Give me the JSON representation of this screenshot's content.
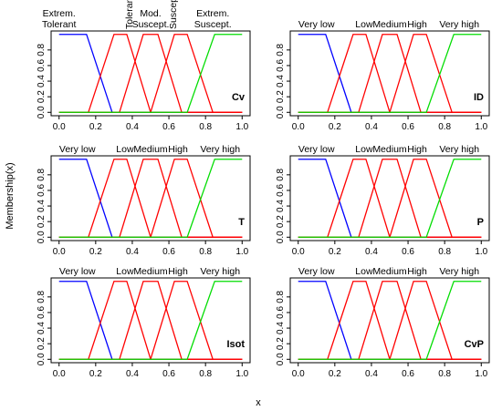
{
  "figure": {
    "ylabel": "Membership(x)",
    "xlabel": "x"
  },
  "chart_data": [
    {
      "type": "line",
      "panel_label": "Cv",
      "xlim": [
        0,
        1
      ],
      "ylim": [
        0,
        1
      ],
      "xticks": [
        "0.0",
        "0.2",
        "0.4",
        "0.6",
        "0.8",
        "1.0"
      ],
      "yticks": [
        "0.0",
        "0.2",
        "0.4",
        "0.6",
        "0.8"
      ],
      "category_labels": [
        {
          "text": "Extrem.\nTolerant",
          "x": 0.0,
          "rotated": false
        },
        {
          "text": "Tolerant",
          "x": 0.38,
          "rotated": true
        },
        {
          "text": "Mod.\nSuscept.",
          "x": 0.5,
          "rotated": false
        },
        {
          "text": "Suscept.",
          "x": 0.62,
          "rotated": true
        },
        {
          "text": "Extrem.\nSuscept.",
          "x": 0.84,
          "rotated": false
        }
      ],
      "series": [
        {
          "color": "#0000ff",
          "x": [
            0,
            0.15,
            0.29,
            1
          ],
          "y": [
            1,
            1,
            0,
            0
          ]
        },
        {
          "color": "#ff0000",
          "x": [
            0,
            0.16,
            0.3,
            0.37,
            0.5,
            1
          ],
          "y": [
            0,
            0,
            1,
            1,
            0,
            0
          ]
        },
        {
          "color": "#ff0000",
          "x": [
            0,
            0.33,
            0.46,
            0.54,
            0.67,
            1
          ],
          "y": [
            0,
            0,
            1,
            1,
            0,
            0
          ]
        },
        {
          "color": "#ff0000",
          "x": [
            0,
            0.5,
            0.63,
            0.7,
            0.84,
            1
          ],
          "y": [
            0,
            0,
            1,
            1,
            0,
            0
          ]
        },
        {
          "color": "#00dd00",
          "x": [
            0,
            0.7,
            0.85,
            1
          ],
          "y": [
            0,
            0,
            1,
            1
          ]
        }
      ]
    },
    {
      "type": "line",
      "panel_label": "ID",
      "xlim": [
        0,
        1
      ],
      "ylim": [
        0,
        1
      ],
      "xticks": [
        "0.0",
        "0.2",
        "0.4",
        "0.6",
        "0.8",
        "1.0"
      ],
      "yticks": [
        "0.0",
        "0.2",
        "0.4",
        "0.6",
        "0.8"
      ],
      "category_labels": [
        {
          "text": "Very low",
          "x": 0.1,
          "rotated": false
        },
        {
          "text": "Low",
          "x": 0.36,
          "rotated": false
        },
        {
          "text": "Medium",
          "x": 0.5,
          "rotated": false
        },
        {
          "text": "High",
          "x": 0.65,
          "rotated": false
        },
        {
          "text": "Very high",
          "x": 0.88,
          "rotated": false
        }
      ],
      "series": [
        {
          "color": "#0000ff",
          "x": [
            0,
            0.15,
            0.29,
            1
          ],
          "y": [
            1,
            1,
            0,
            0
          ]
        },
        {
          "color": "#ff0000",
          "x": [
            0,
            0.16,
            0.3,
            0.37,
            0.5,
            1
          ],
          "y": [
            0,
            0,
            1,
            1,
            0,
            0
          ]
        },
        {
          "color": "#ff0000",
          "x": [
            0,
            0.33,
            0.46,
            0.54,
            0.67,
            1
          ],
          "y": [
            0,
            0,
            1,
            1,
            0,
            0
          ]
        },
        {
          "color": "#ff0000",
          "x": [
            0,
            0.5,
            0.63,
            0.7,
            0.84,
            1
          ],
          "y": [
            0,
            0,
            1,
            1,
            0,
            0
          ]
        },
        {
          "color": "#00dd00",
          "x": [
            0,
            0.7,
            0.85,
            1
          ],
          "y": [
            0,
            0,
            1,
            1
          ]
        }
      ]
    },
    {
      "type": "line",
      "panel_label": "T",
      "xlim": [
        0,
        1
      ],
      "ylim": [
        0,
        1
      ],
      "xticks": [
        "0.0",
        "0.2",
        "0.4",
        "0.6",
        "0.8",
        "1.0"
      ],
      "yticks": [
        "0.0",
        "0.2",
        "0.4",
        "0.6",
        "0.8"
      ],
      "category_labels": [
        {
          "text": "Very low",
          "x": 0.1,
          "rotated": false
        },
        {
          "text": "Low",
          "x": 0.36,
          "rotated": false
        },
        {
          "text": "Medium",
          "x": 0.5,
          "rotated": false
        },
        {
          "text": "High",
          "x": 0.65,
          "rotated": false
        },
        {
          "text": "Very high",
          "x": 0.88,
          "rotated": false
        }
      ],
      "series": [
        {
          "color": "#0000ff",
          "x": [
            0,
            0.15,
            0.29,
            1
          ],
          "y": [
            1,
            1,
            0,
            0
          ]
        },
        {
          "color": "#ff0000",
          "x": [
            0,
            0.16,
            0.3,
            0.37,
            0.5,
            1
          ],
          "y": [
            0,
            0,
            1,
            1,
            0,
            0
          ]
        },
        {
          "color": "#ff0000",
          "x": [
            0,
            0.33,
            0.46,
            0.54,
            0.67,
            1
          ],
          "y": [
            0,
            0,
            1,
            1,
            0,
            0
          ]
        },
        {
          "color": "#ff0000",
          "x": [
            0,
            0.5,
            0.63,
            0.7,
            0.84,
            1
          ],
          "y": [
            0,
            0,
            1,
            1,
            0,
            0
          ]
        },
        {
          "color": "#00dd00",
          "x": [
            0,
            0.7,
            0.85,
            1
          ],
          "y": [
            0,
            0,
            1,
            1
          ]
        }
      ]
    },
    {
      "type": "line",
      "panel_label": "P",
      "xlim": [
        0,
        1
      ],
      "ylim": [
        0,
        1
      ],
      "xticks": [
        "0.0",
        "0.2",
        "0.4",
        "0.6",
        "0.8",
        "1.0"
      ],
      "yticks": [
        "0.0",
        "0.2",
        "0.4",
        "0.6",
        "0.8"
      ],
      "category_labels": [
        {
          "text": "Very low",
          "x": 0.1,
          "rotated": false
        },
        {
          "text": "Low",
          "x": 0.36,
          "rotated": false
        },
        {
          "text": "Medium",
          "x": 0.5,
          "rotated": false
        },
        {
          "text": "High",
          "x": 0.65,
          "rotated": false
        },
        {
          "text": "Very high",
          "x": 0.88,
          "rotated": false
        }
      ],
      "series": [
        {
          "color": "#0000ff",
          "x": [
            0,
            0.15,
            0.29,
            1
          ],
          "y": [
            1,
            1,
            0,
            0
          ]
        },
        {
          "color": "#ff0000",
          "x": [
            0,
            0.16,
            0.3,
            0.37,
            0.5,
            1
          ],
          "y": [
            0,
            0,
            1,
            1,
            0,
            0
          ]
        },
        {
          "color": "#ff0000",
          "x": [
            0,
            0.33,
            0.46,
            0.54,
            0.67,
            1
          ],
          "y": [
            0,
            0,
            1,
            1,
            0,
            0
          ]
        },
        {
          "color": "#ff0000",
          "x": [
            0,
            0.5,
            0.63,
            0.7,
            0.84,
            1
          ],
          "y": [
            0,
            0,
            1,
            1,
            0,
            0
          ]
        },
        {
          "color": "#00dd00",
          "x": [
            0,
            0.7,
            0.85,
            1
          ],
          "y": [
            0,
            0,
            1,
            1
          ]
        }
      ]
    },
    {
      "type": "line",
      "panel_label": "Isot",
      "xlim": [
        0,
        1
      ],
      "ylim": [
        0,
        1
      ],
      "xticks": [
        "0.0",
        "0.2",
        "0.4",
        "0.6",
        "0.8",
        "1.0"
      ],
      "yticks": [
        "0.0",
        "0.2",
        "0.4",
        "0.6",
        "0.8"
      ],
      "category_labels": [
        {
          "text": "Very low",
          "x": 0.1,
          "rotated": false
        },
        {
          "text": "Low",
          "x": 0.36,
          "rotated": false
        },
        {
          "text": "Medium",
          "x": 0.5,
          "rotated": false
        },
        {
          "text": "High",
          "x": 0.65,
          "rotated": false
        },
        {
          "text": "Very high",
          "x": 0.88,
          "rotated": false
        }
      ],
      "series": [
        {
          "color": "#0000ff",
          "x": [
            0,
            0.15,
            0.29,
            1
          ],
          "y": [
            1,
            1,
            0,
            0
          ]
        },
        {
          "color": "#ff0000",
          "x": [
            0,
            0.16,
            0.3,
            0.37,
            0.5,
            1
          ],
          "y": [
            0,
            0,
            1,
            1,
            0,
            0
          ]
        },
        {
          "color": "#ff0000",
          "x": [
            0,
            0.33,
            0.46,
            0.54,
            0.67,
            1
          ],
          "y": [
            0,
            0,
            1,
            1,
            0,
            0
          ]
        },
        {
          "color": "#ff0000",
          "x": [
            0,
            0.5,
            0.63,
            0.7,
            0.84,
            1
          ],
          "y": [
            0,
            0,
            1,
            1,
            0,
            0
          ]
        },
        {
          "color": "#00dd00",
          "x": [
            0,
            0.7,
            0.85,
            1
          ],
          "y": [
            0,
            0,
            1,
            1
          ]
        }
      ]
    },
    {
      "type": "line",
      "panel_label": "CvP",
      "xlim": [
        0,
        1
      ],
      "ylim": [
        0,
        1
      ],
      "xticks": [
        "0.0",
        "0.2",
        "0.4",
        "0.6",
        "0.8",
        "1.0"
      ],
      "yticks": [
        "0.0",
        "0.2",
        "0.4",
        "0.6",
        "0.8"
      ],
      "category_labels": [
        {
          "text": "Very low",
          "x": 0.1,
          "rotated": false
        },
        {
          "text": "Low",
          "x": 0.36,
          "rotated": false
        },
        {
          "text": "Medium",
          "x": 0.5,
          "rotated": false
        },
        {
          "text": "High",
          "x": 0.65,
          "rotated": false
        },
        {
          "text": "Very high",
          "x": 0.88,
          "rotated": false
        }
      ],
      "series": [
        {
          "color": "#0000ff",
          "x": [
            0,
            0.15,
            0.29,
            1
          ],
          "y": [
            1,
            1,
            0,
            0
          ]
        },
        {
          "color": "#ff0000",
          "x": [
            0,
            0.16,
            0.3,
            0.37,
            0.5,
            1
          ],
          "y": [
            0,
            0,
            1,
            1,
            0,
            0
          ]
        },
        {
          "color": "#ff0000",
          "x": [
            0,
            0.33,
            0.46,
            0.54,
            0.67,
            1
          ],
          "y": [
            0,
            0,
            1,
            1,
            0,
            0
          ]
        },
        {
          "color": "#ff0000",
          "x": [
            0,
            0.5,
            0.63,
            0.7,
            0.84,
            1
          ],
          "y": [
            0,
            0,
            1,
            1,
            0,
            0
          ]
        },
        {
          "color": "#00dd00",
          "x": [
            0,
            0.7,
            0.85,
            1
          ],
          "y": [
            0,
            0,
            1,
            1
          ]
        }
      ]
    }
  ]
}
